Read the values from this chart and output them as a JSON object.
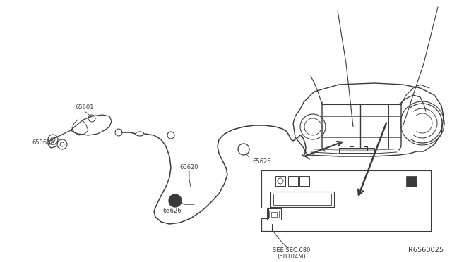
{
  "bg_color": "#ffffff",
  "line_color": "#3a3a3a",
  "diagram_id": "R6560025",
  "fig_w": 6.4,
  "fig_h": 3.72,
  "dpi": 100,
  "label_fontsize": 6.0,
  "id_fontsize": 7.0,
  "see_sec_line1": "SEE SEC.680",
  "see_sec_line2": "(6B104M)"
}
